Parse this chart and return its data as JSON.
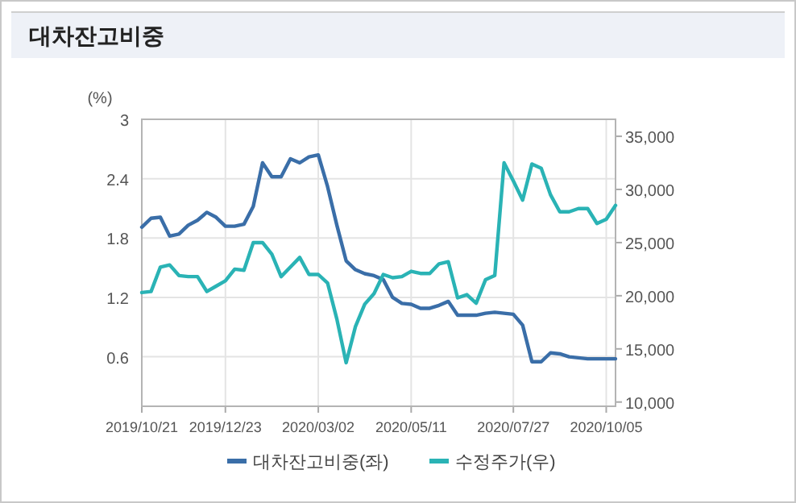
{
  "chart_data": {
    "type": "line",
    "title": "대차잔고비중",
    "ylabel": "(%)",
    "x": [
      "2019-10-21",
      "2019-10-28",
      "2019-11-04",
      "2019-11-11",
      "2019-11-18",
      "2019-11-25",
      "2019-12-02",
      "2019-12-09",
      "2019-12-16",
      "2019-12-23",
      "2019-12-30",
      "2020-01-06",
      "2020-01-13",
      "2020-01-20",
      "2020-01-27",
      "2020-02-03",
      "2020-02-10",
      "2020-02-17",
      "2020-02-24",
      "2020-03-02",
      "2020-03-09",
      "2020-03-16",
      "2020-03-23",
      "2020-03-30",
      "2020-04-06",
      "2020-04-13",
      "2020-04-20",
      "2020-04-27",
      "2020-05-04",
      "2020-05-11",
      "2020-05-18",
      "2020-05-25",
      "2020-06-01",
      "2020-06-08",
      "2020-06-15",
      "2020-06-22",
      "2020-06-29",
      "2020-07-06",
      "2020-07-13",
      "2020-07-20",
      "2020-07-27",
      "2020-08-03",
      "2020-08-10",
      "2020-08-17",
      "2020-08-24",
      "2020-08-31",
      "2020-09-07",
      "2020-09-14",
      "2020-09-21",
      "2020-09-28",
      "2020-10-05",
      "2020-10-12"
    ],
    "series": [
      {
        "name": "대차잔고비중(좌)",
        "color": "#3a6ea8",
        "values": [
          1.91,
          2.0,
          2.01,
          1.82,
          1.84,
          1.93,
          1.98,
          2.06,
          2.01,
          1.92,
          1.92,
          1.94,
          2.12,
          2.56,
          2.42,
          2.42,
          2.6,
          2.56,
          2.62,
          2.64,
          2.32,
          1.93,
          1.57,
          1.48,
          1.44,
          1.42,
          1.38,
          1.2,
          1.14,
          1.13,
          1.09,
          1.09,
          1.12,
          1.16,
          1.02,
          1.02,
          1.02,
          1.04,
          1.05,
          1.04,
          1.03,
          0.92,
          0.55,
          0.55,
          0.64,
          0.63,
          0.6,
          0.59,
          0.58,
          0.58,
          0.58,
          0.58
        ]
      },
      {
        "name": "수정주가(우)",
        "color": "#2ab3b5",
        "axis": "y2",
        "values": [
          20300,
          20400,
          22700,
          22900,
          21900,
          21800,
          21800,
          20400,
          20900,
          21400,
          22500,
          22400,
          25000,
          25000,
          23900,
          21800,
          22700,
          23600,
          22000,
          22000,
          21200,
          17800,
          13700,
          17100,
          19200,
          20200,
          22000,
          21700,
          21800,
          22300,
          22100,
          22100,
          23000,
          23200,
          19800,
          20100,
          19300,
          21500,
          21900,
          32500,
          30800,
          29000,
          32400,
          32000,
          29500,
          27900,
          27900,
          28200,
          28200,
          26800,
          27200,
          28500
        ]
      }
    ],
    "xlim": [
      "2019-10-21",
      "2020-10-12"
    ],
    "xticks": [
      {
        "value": "2019-10-21",
        "label": "2019/10/21"
      },
      {
        "value": "2019-12-23",
        "label": "2019/12/23"
      },
      {
        "value": "2020-03-02",
        "label": "2020/03/02"
      },
      {
        "value": "2020-05-11",
        "label": "2020/05/11"
      },
      {
        "value": "2020-07-27",
        "label": "2020/07/27"
      },
      {
        "value": "2020-10-05",
        "label": "2020/10/05"
      }
    ],
    "ylim": [
      0.1,
      3
    ],
    "yticks": [
      0.6,
      1.2,
      1.8,
      2.4,
      3
    ],
    "y2lim": [
      9600,
      36600
    ],
    "y2ticks": [
      {
        "value": 10000,
        "label": "10,000"
      },
      {
        "value": 15000,
        "label": "15,000"
      },
      {
        "value": 20000,
        "label": "20,000"
      },
      {
        "value": 25000,
        "label": "25,000"
      },
      {
        "value": 30000,
        "label": "30,000"
      },
      {
        "value": 35000,
        "label": "35,000"
      }
    ],
    "grid": true,
    "legend": "bottom",
    "line_style": "solid",
    "marker": "none"
  }
}
